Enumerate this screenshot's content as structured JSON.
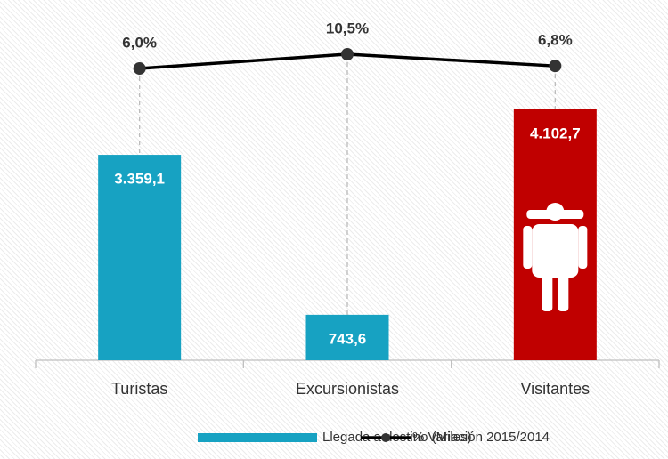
{
  "chart_data": {
    "type": "bar-line",
    "categories": [
      "Turistas",
      "Excursionistas",
      "Visitantes"
    ],
    "series": [
      {
        "name": "Llegada a destino (Miles)",
        "type": "bar",
        "color": "#17a2c2",
        "colors": [
          "#17a2c2",
          "#17a2c2",
          "#c00000"
        ],
        "values": [
          3359.1,
          743.6,
          4102.7
        ],
        "value_labels": [
          "3.359,1",
          "743,6",
          "4.102,7"
        ]
      },
      {
        "name": "% Variación 2015/2014",
        "type": "line",
        "color": "#000000",
        "axis": "y2",
        "values": [
          6.0,
          10.5,
          6.8
        ],
        "value_labels": [
          "6,0%",
          "10,5%",
          "6,8%"
        ]
      }
    ],
    "ylim": [
      0,
      5600
    ],
    "y2lim": [
      -86,
      22
    ],
    "legend": "bottom"
  }
}
